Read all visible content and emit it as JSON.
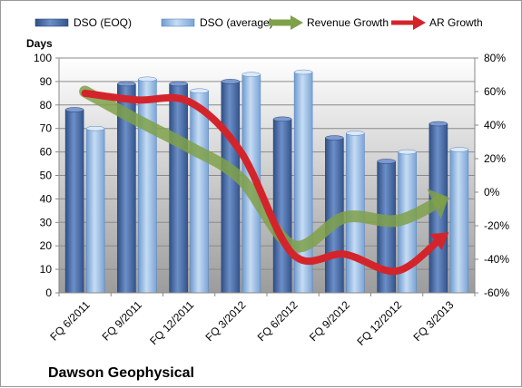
{
  "chart_data": {
    "type": "bar",
    "title": "",
    "company_label": "Dawson Geophysical",
    "ylabel_left": "Days",
    "categories": [
      "FQ 6/2011",
      "FQ 9/2011",
      "FQ 12/2011",
      "FQ 3/2012",
      "FQ 6/2012",
      "FQ 9/2012",
      "FQ 12/2012",
      "FQ 3/2013"
    ],
    "left_axis": {
      "min": 0,
      "max": 100,
      "ticks": [
        0,
        10,
        20,
        30,
        40,
        50,
        60,
        70,
        80,
        90,
        100
      ]
    },
    "right_axis": {
      "min": -60,
      "max": 80,
      "ticks": [
        "-60%",
        "-40%",
        "-20%",
        "0%",
        "20%",
        "40%",
        "60%",
        "80%"
      ]
    },
    "series": [
      {
        "name": "DSO (EOQ)",
        "type": "bar",
        "axis": "left",
        "color": "#4f6fa8",
        "values": [
          78,
          89,
          89,
          90,
          74,
          66,
          56,
          72
        ]
      },
      {
        "name": "DSO (average)",
        "type": "bar",
        "axis": "left",
        "color": "#9cc0e6",
        "values": [
          70,
          91,
          86,
          93,
          94,
          68,
          60,
          61
        ]
      },
      {
        "name": "Revenue Growth",
        "type": "line",
        "axis": "right",
        "color": "#7fa14a",
        "values": [
          60,
          43,
          27,
          8,
          -32,
          -15,
          -17,
          -3
        ]
      },
      {
        "name": "AR Growth",
        "type": "line",
        "axis": "right",
        "color": "#d4242b",
        "values": [
          59,
          55,
          54,
          24,
          -37,
          -37,
          -47,
          -24
        ]
      }
    ],
    "grid": true,
    "legend_position": "top"
  }
}
